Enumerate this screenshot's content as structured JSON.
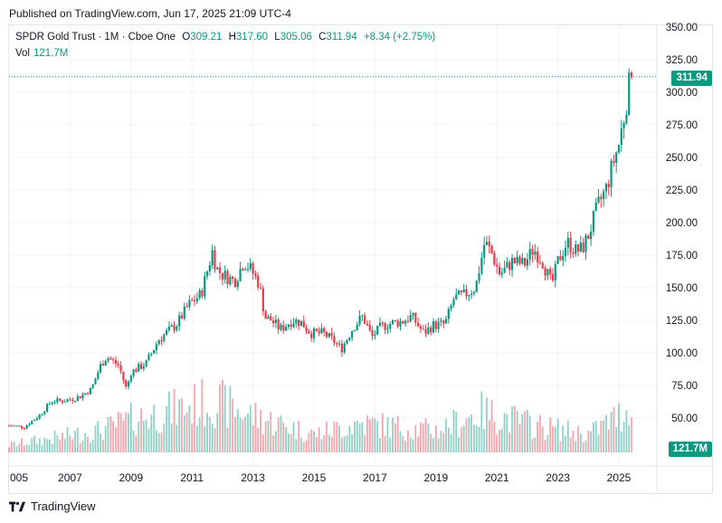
{
  "header": {
    "published": "Published on TradingView.com, Jun 17, 2025 21:09 UTC-4"
  },
  "legend": {
    "symbol": "SPDR Gold Trust · 1M · Cboe One",
    "o_label": "O",
    "o_value": "309.21",
    "h_label": "H",
    "h_value": "317.60",
    "l_label": "L",
    "l_value": "305.06",
    "c_label": "C",
    "c_value": "311.94",
    "change": "+8.34 (+2.75%)",
    "vol_label": "Vol",
    "vol_value": "121.7M"
  },
  "price_badge": "311.94",
  "volume_badge": "121.7M",
  "footer": {
    "brand": "TradingView"
  },
  "colors": {
    "up": "#089981",
    "down": "#f23645",
    "grid": "#f0f3fa",
    "axis_text": "#131722"
  },
  "chart_data": {
    "type": "candlestick",
    "y_ticks": [
      "350.00",
      "325.00",
      "300.00",
      "275.00",
      "250.00",
      "225.00",
      "200.00",
      "175.00",
      "150.00",
      "125.00",
      "100.00",
      "75.00",
      "50.00"
    ],
    "x_ticks": [
      "005",
      "2007",
      "2009",
      "2011",
      "2013",
      "2015",
      "2017",
      "2019",
      "2021",
      "2023",
      "2025"
    ],
    "ylim": [
      30,
      350
    ],
    "last_price": 311.94,
    "anchors": [
      [
        2005.0,
        44
      ],
      [
        2005.5,
        43
      ],
      [
        2006.0,
        52
      ],
      [
        2006.4,
        63
      ],
      [
        2006.8,
        63
      ],
      [
        2007.3,
        66
      ],
      [
        2007.7,
        72
      ],
      [
        2008.0,
        90
      ],
      [
        2008.2,
        97
      ],
      [
        2008.6,
        90
      ],
      [
        2008.85,
        72
      ],
      [
        2009.0,
        85
      ],
      [
        2009.5,
        92
      ],
      [
        2009.9,
        110
      ],
      [
        2010.5,
        122
      ],
      [
        2010.9,
        137
      ],
      [
        2011.3,
        145
      ],
      [
        2011.67,
        178
      ],
      [
        2011.8,
        165
      ],
      [
        2012.0,
        160
      ],
      [
        2012.4,
        155
      ],
      [
        2012.7,
        170
      ],
      [
        2012.9,
        165
      ],
      [
        2013.2,
        153
      ],
      [
        2013.4,
        127
      ],
      [
        2013.6,
        125
      ],
      [
        2013.9,
        118
      ],
      [
        2014.3,
        125
      ],
      [
        2014.6,
        123
      ],
      [
        2014.9,
        115
      ],
      [
        2015.3,
        115
      ],
      [
        2015.6,
        110
      ],
      [
        2015.9,
        103
      ],
      [
        2016.3,
        120
      ],
      [
        2016.6,
        128
      ],
      [
        2016.9,
        112
      ],
      [
        2017.2,
        120
      ],
      [
        2017.6,
        123
      ],
      [
        2017.9,
        124
      ],
      [
        2018.2,
        128
      ],
      [
        2018.6,
        115
      ],
      [
        2018.9,
        121
      ],
      [
        2019.3,
        122
      ],
      [
        2019.6,
        142
      ],
      [
        2019.9,
        144
      ],
      [
        2020.3,
        150
      ],
      [
        2020.6,
        185
      ],
      [
        2020.8,
        178
      ],
      [
        2021.1,
        160
      ],
      [
        2021.5,
        170
      ],
      [
        2021.9,
        168
      ],
      [
        2022.2,
        180
      ],
      [
        2022.5,
        170
      ],
      [
        2022.8,
        152
      ],
      [
        2023.0,
        170
      ],
      [
        2023.3,
        185
      ],
      [
        2023.6,
        178
      ],
      [
        2023.8,
        180
      ],
      [
        2024.0,
        190
      ],
      [
        2024.3,
        212
      ],
      [
        2024.6,
        227
      ],
      [
        2024.8,
        245
      ],
      [
        2025.0,
        260
      ],
      [
        2025.2,
        285
      ],
      [
        2025.33,
        305
      ],
      [
        2025.42,
        307
      ],
      [
        2025.46,
        311.94
      ]
    ],
    "vol_anchors": [
      [
        2005,
        0.1
      ],
      [
        2008,
        0.3
      ],
      [
        2009,
        0.45
      ],
      [
        2011.7,
        0.7
      ],
      [
        2013,
        0.5
      ],
      [
        2015,
        0.25
      ],
      [
        2016.5,
        0.4
      ],
      [
        2019,
        0.3
      ],
      [
        2020.5,
        0.55
      ],
      [
        2022.5,
        0.35
      ],
      [
        2024,
        0.25
      ],
      [
        2025.4,
        0.6
      ]
    ]
  }
}
